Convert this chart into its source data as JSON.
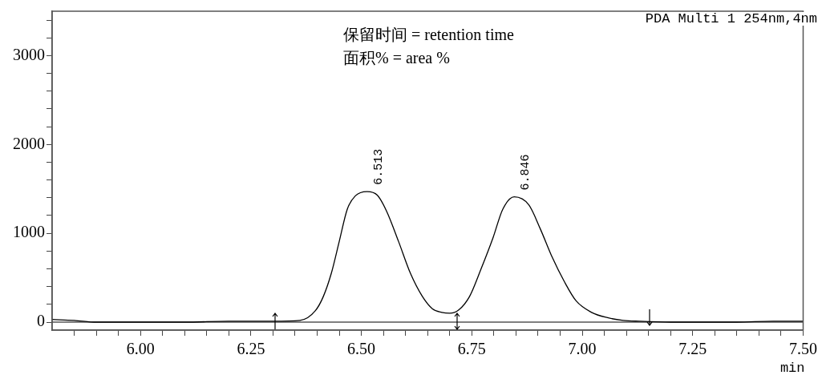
{
  "chart_data": {
    "type": "line",
    "xlabel": "min",
    "annotations": [
      "PDA Multi 1 254nm,4nm",
      "保留时间 = retention time",
      "面积% = area %",
      {
        "text": "6.513",
        "x": 6.513,
        "y": 1473
      },
      {
        "text": "6.846",
        "x": 6.846,
        "y": 1411
      }
    ],
    "x": [
      5.8,
      5.85,
      5.9,
      6.0,
      6.1,
      6.2,
      6.3,
      6.361,
      6.396,
      6.414,
      6.432,
      6.45,
      6.468,
      6.486,
      6.513,
      6.536,
      6.557,
      6.584,
      6.611,
      6.638,
      6.661,
      6.682,
      6.7,
      6.721,
      6.745,
      6.771,
      6.798,
      6.82,
      6.846,
      6.879,
      6.905,
      6.932,
      6.959,
      6.986,
      7.021,
      7.057,
      7.093,
      7.129,
      7.2,
      7.29,
      7.35,
      7.432,
      7.5
    ],
    "series": [
      {
        "color": "#000000",
        "values": [
          30,
          20,
          0,
          0,
          0,
          10,
          10,
          20,
          130,
          290,
          550,
          910,
          1270,
          1420,
          1470,
          1430,
          1250,
          910,
          550,
          290,
          150,
          110,
          100,
          140,
          290,
          600,
          950,
          1270,
          1410,
          1320,
          1050,
          730,
          460,
          240,
          110,
          50,
          20,
          10,
          0,
          0,
          0,
          10,
          10
        ]
      }
    ],
    "xlim": [
      5.8,
      7.5
    ],
    "xticks": [
      {
        "value": 5.85,
        "label": null
      },
      {
        "value": 5.9,
        "label": null
      },
      {
        "value": 5.95,
        "label": null
      },
      {
        "value": 6.0,
        "label": "6.00"
      },
      {
        "value": 6.05,
        "label": null
      },
      {
        "value": 6.1,
        "label": null
      },
      {
        "value": 6.15,
        "label": null
      },
      {
        "value": 6.2,
        "label": null
      },
      {
        "value": 6.25,
        "label": "6.25"
      },
      {
        "value": 6.3,
        "label": null
      },
      {
        "value": 6.35,
        "label": null
      },
      {
        "value": 6.4,
        "label": null
      },
      {
        "value": 6.45,
        "label": null
      },
      {
        "value": 6.5,
        "label": "6.50"
      },
      {
        "value": 6.55,
        "label": null
      },
      {
        "value": 6.6,
        "label": null
      },
      {
        "value": 6.65,
        "label": null
      },
      {
        "value": 6.7,
        "label": null
      },
      {
        "value": 6.75,
        "label": "6.75"
      },
      {
        "value": 6.8,
        "label": null
      },
      {
        "value": 6.85,
        "label": null
      },
      {
        "value": 6.9,
        "label": null
      },
      {
        "value": 6.95,
        "label": null
      },
      {
        "value": 7.0,
        "label": "7.00"
      },
      {
        "value": 7.05,
        "label": null
      },
      {
        "value": 7.1,
        "label": null
      },
      {
        "value": 7.15,
        "label": null
      },
      {
        "value": 7.2,
        "label": null
      },
      {
        "value": 7.25,
        "label": "7.25"
      },
      {
        "value": 7.3,
        "label": null
      },
      {
        "value": 7.35,
        "label": null
      },
      {
        "value": 7.4,
        "label": null
      },
      {
        "value": 7.45,
        "label": null
      },
      {
        "value": 7.5,
        "label": "7.50"
      }
    ],
    "ylim": [
      -90,
      3500
    ],
    "yticks": [
      0,
      {
        "value": 200,
        "label": null
      },
      {
        "value": 400,
        "label": null
      },
      {
        "value": 600,
        "label": null
      },
      {
        "value": 800,
        "label": null
      },
      1000,
      {
        "value": 1200,
        "label": null
      },
      {
        "value": 1400,
        "label": null
      },
      {
        "value": 1600,
        "label": null
      },
      {
        "value": 1800,
        "label": null
      },
      2000,
      {
        "value": 2200,
        "label": null
      },
      {
        "value": 2400,
        "label": null
      },
      {
        "value": 2600,
        "label": null
      },
      {
        "value": 2800,
        "label": null
      },
      3000,
      {
        "value": 3200,
        "label": null
      },
      {
        "value": 3400,
        "label": null
      }
    ],
    "ref_lines": [
      {
        "axis": "y",
        "value": 0,
        "color": "#000000"
      }
    ],
    "marker": "none",
    "line_style": "solid",
    "legend": false
  }
}
